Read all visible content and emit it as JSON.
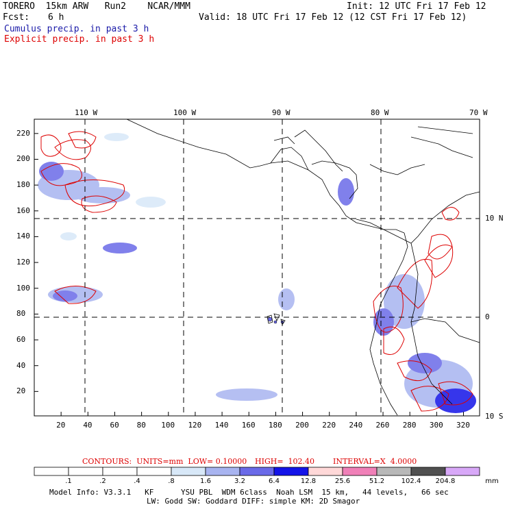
{
  "header": {
    "model": "TORERO  15km ARW   Run2    NCAR/MMM",
    "init": "Init: 12 UTC Fri 17 Feb 12",
    "fcst_label": "Fcst:",
    "fcst_value": "6 h",
    "valid": "Valid: 18 UTC Fri 17 Feb 12 (12 CST Fri 17 Feb 12)",
    "cumulus": "Cumulus precip. in past 3 h",
    "explicit": "Explicit precip. in past 3 h"
  },
  "map": {
    "lon_labels": [
      "110 W",
      "100 W",
      "90 W",
      "80 W",
      "70 W"
    ],
    "lat_labels": [
      "10 N",
      "0",
      "10 S"
    ],
    "y_ticks": [
      "220",
      "200",
      "180",
      "160",
      "140",
      "120",
      "100",
      "80",
      "60",
      "40",
      "20"
    ],
    "x_ticks": [
      "20",
      "40",
      "60",
      "80",
      "100",
      "120",
      "140",
      "160",
      "180",
      "200",
      "220",
      "240",
      "260",
      "280",
      "300",
      "320"
    ]
  },
  "contours": {
    "text": "CONTOURS:  UNITS=mm  LOW= 0.10000",
    "high": "HIGH=  102.40",
    "interval": "INTERVAL=X  4.0000"
  },
  "colorbar": {
    "unit": "mm",
    "labels": [
      ".1",
      ".2",
      ".4",
      ".8",
      "1.6",
      "3.2",
      "6.4",
      "12.8",
      "25.6",
      "51.2",
      "102.4",
      "204.8"
    ],
    "colors": [
      "#ffffff",
      "#ffffff",
      "#ffffff",
      "#ffffff",
      "#d8e8f8",
      "#a8b4f0",
      "#6a6ae8",
      "#1414e8",
      "#ffd8d8",
      "#f080b8",
      "#b8b8b8",
      "#505050",
      "#d8a8f8"
    ]
  },
  "footer": {
    "line1": "Model Info: V3.3.1   KF      YSU PBL  WDM 6class  Noah LSM  15 km,   44 levels,   66 sec",
    "line2": "LW: Godd SW: Goddard DIFF: simple KM: 2D Smagor"
  }
}
